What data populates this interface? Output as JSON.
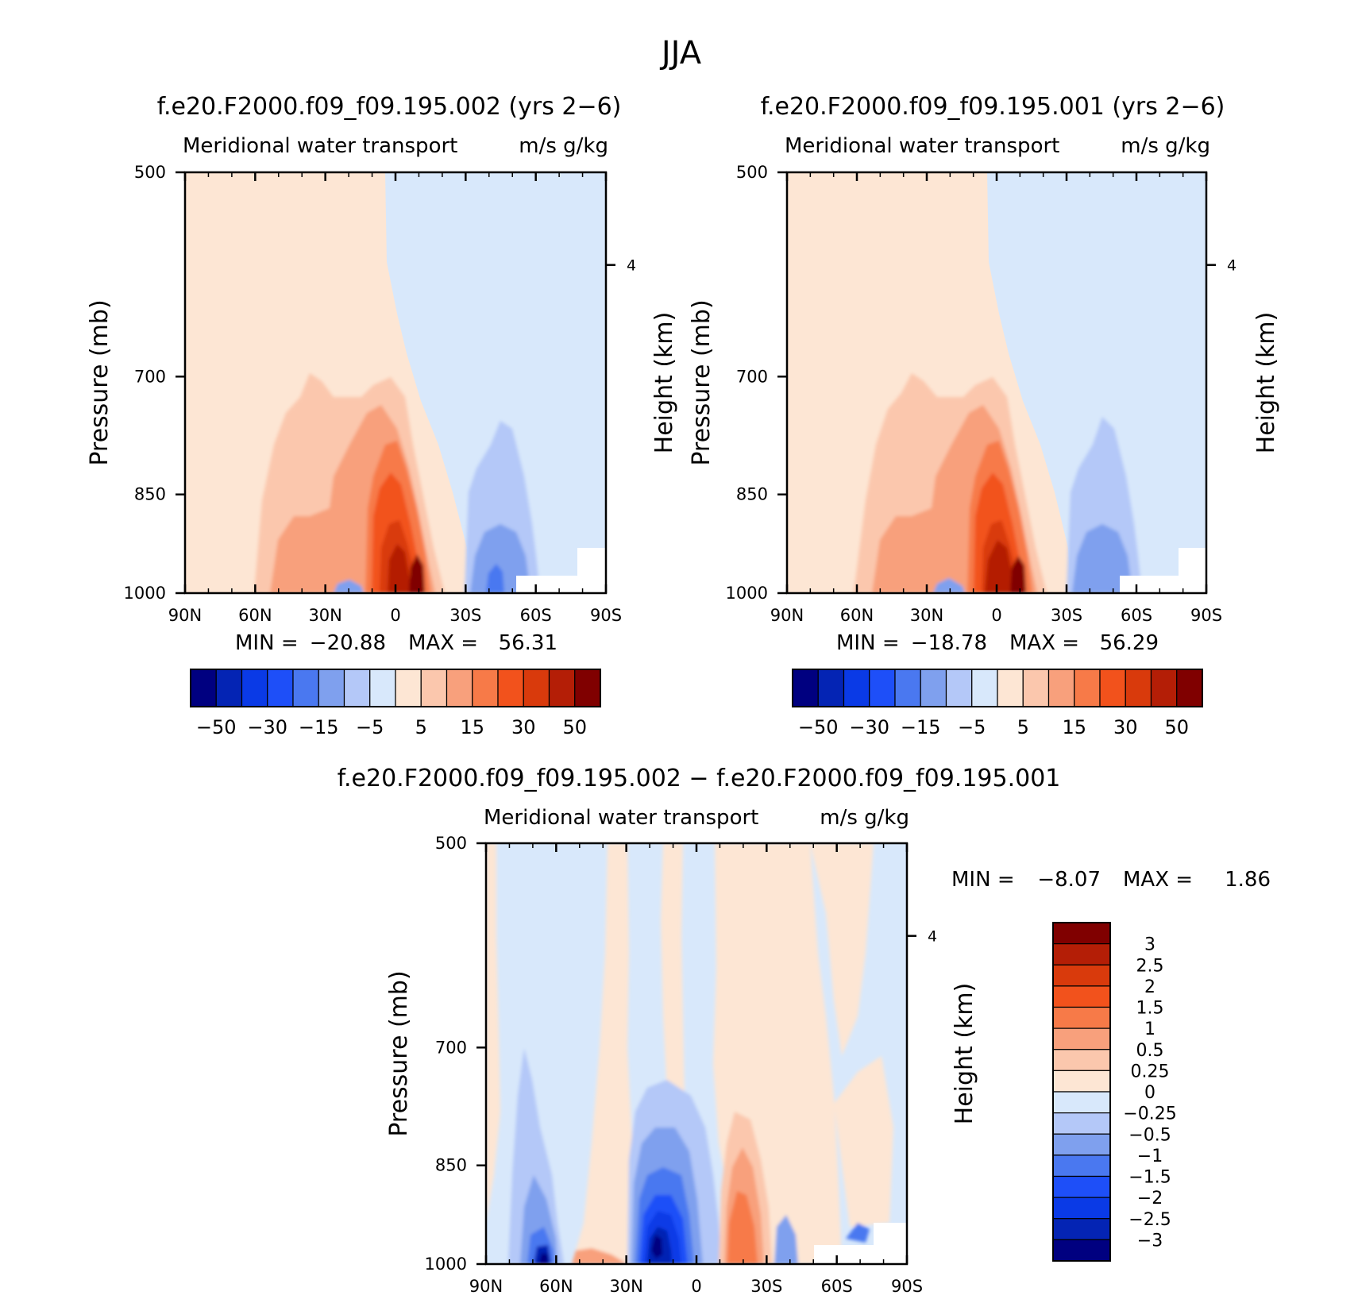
{
  "figure_title": "JJA",
  "chart_data": [
    {
      "type": "heatmap",
      "subtype": "filled-contour latitude-pressure cross-section",
      "title": "f.e20.F2000.f09_f09.195.002 (yrs 2−6)",
      "left_subtitle": "Meridional water transport",
      "right_subtitle": "m/s g/kg",
      "xlabel": "",
      "ylabel": "Pressure (mb)",
      "y2label": "Height (km)",
      "xticks": [
        "90N",
        "60N",
        "30N",
        "0",
        "30S",
        "60S",
        "90S"
      ],
      "xlim": [
        90,
        -90
      ],
      "yticks": [
        "500",
        "700",
        "850",
        "1000"
      ],
      "ylim": [
        1000,
        500
      ],
      "y2ticks": [
        "4"
      ],
      "stats": {
        "min_label": "MIN =",
        "min": "−20.88",
        "max_label": "MAX =",
        "max": "56.31"
      },
      "colorbar": {
        "levels": [
          -60,
          -50,
          -40,
          -30,
          -20,
          -15,
          -10,
          -5,
          0,
          5,
          10,
          15,
          20,
          30,
          40,
          50,
          60
        ],
        "labels": [
          "−50",
          "−30",
          "−15",
          "−5",
          "5",
          "15",
          "30",
          "50"
        ],
        "colors": [
          "#000080",
          "#0424b4",
          "#0a3ae6",
          "#1e4ff8",
          "#4a78f0",
          "#7fa0ee",
          "#b4c8f8",
          "#d8e8fb",
          "#fde6d4",
          "#fbc7ad",
          "#f8a07c",
          "#f77a48",
          "#f2521c",
          "#d93a0c",
          "#b41e06",
          "#800000"
        ]
      },
      "features": [
        {
          "name": "positive core",
          "lat": -8,
          "pressure_top": 730,
          "pressure_bottom": 1000,
          "peak": 56.31
        },
        {
          "name": "negative lobe",
          "lat": -45,
          "pressure_top": 800,
          "pressure_bottom": 1000,
          "peak": -20.88
        }
      ]
    },
    {
      "type": "heatmap",
      "subtype": "filled-contour latitude-pressure cross-section",
      "title": "f.e20.F2000.f09_f09.195.001 (yrs 2−6)",
      "left_subtitle": "Meridional water transport",
      "right_subtitle": "m/s g/kg",
      "xlabel": "",
      "ylabel": "Pressure (mb)",
      "y2label": "Height (km)",
      "xticks": [
        "90N",
        "60N",
        "30N",
        "0",
        "30S",
        "60S",
        "90S"
      ],
      "xlim": [
        90,
        -90
      ],
      "yticks": [
        "500",
        "700",
        "850",
        "1000"
      ],
      "ylim": [
        1000,
        500
      ],
      "y2ticks": [
        "4"
      ],
      "stats": {
        "min_label": "MIN =",
        "min": "−18.78",
        "max_label": "MAX =",
        "max": "56.29"
      },
      "colorbar": {
        "levels": [
          -60,
          -50,
          -40,
          -30,
          -20,
          -15,
          -10,
          -5,
          0,
          5,
          10,
          15,
          20,
          30,
          40,
          50,
          60
        ],
        "labels": [
          "−50",
          "−30",
          "−15",
          "−5",
          "5",
          "15",
          "30",
          "50"
        ],
        "colors": [
          "#000080",
          "#0424b4",
          "#0a3ae6",
          "#1e4ff8",
          "#4a78f0",
          "#7fa0ee",
          "#b4c8f8",
          "#d8e8fb",
          "#fde6d4",
          "#fbc7ad",
          "#f8a07c",
          "#f77a48",
          "#f2521c",
          "#d93a0c",
          "#b41e06",
          "#800000"
        ]
      },
      "features": [
        {
          "name": "positive core",
          "lat": -8,
          "pressure_top": 730,
          "pressure_bottom": 1000,
          "peak": 56.29
        },
        {
          "name": "negative lobe",
          "lat": -45,
          "pressure_top": 800,
          "pressure_bottom": 1000,
          "peak": -18.78
        }
      ]
    },
    {
      "type": "heatmap",
      "subtype": "filled-contour latitude-pressure cross-section (difference)",
      "title": "f.e20.F2000.f09_f09.195.002 − f.e20.F2000.f09_f09.195.001",
      "left_subtitle": "Meridional water transport",
      "right_subtitle": "m/s g/kg",
      "xlabel": "",
      "ylabel": "Pressure (mb)",
      "y2label": "Height (km)",
      "xticks": [
        "90N",
        "60N",
        "30N",
        "0",
        "30S",
        "60S",
        "90S"
      ],
      "xlim": [
        90,
        -90
      ],
      "yticks": [
        "500",
        "700",
        "850",
        "1000"
      ],
      "ylim": [
        1000,
        500
      ],
      "y2ticks": [
        "4"
      ],
      "stats": {
        "min_label": "MIN =",
        "min": "−8.07",
        "max_label": "MAX =",
        "max": "1.86"
      },
      "colorbar": {
        "levels": [
          -3.5,
          -3,
          -2.5,
          -2,
          -1.5,
          -1,
          -0.5,
          -0.25,
          0,
          0.25,
          0.5,
          1,
          1.5,
          2,
          2.5,
          3,
          3.5
        ],
        "labels": [
          "3",
          "2.5",
          "2",
          "1.5",
          "1",
          "0.5",
          "0.25",
          "0",
          "−0.25",
          "−0.5",
          "−1",
          "−1.5",
          "−2",
          "−2.5",
          "−3"
        ],
        "colors": [
          "#000080",
          "#0424b4",
          "#0a3ae6",
          "#1e4ff8",
          "#4a78f0",
          "#7fa0ee",
          "#b4c8f8",
          "#d8e8fb",
          "#fde6d4",
          "#fbc7ad",
          "#f8a07c",
          "#f77a48",
          "#f2521c",
          "#d93a0c",
          "#b41e06",
          "#800000"
        ]
      },
      "features": [
        {
          "name": "negative core",
          "lat": 18,
          "pressure_top": 860,
          "pressure_bottom": 1000,
          "peak": -8.07
        },
        {
          "name": "negative core",
          "lat": 65,
          "pressure_top": 950,
          "pressure_bottom": 1000,
          "peak": -6
        },
        {
          "name": "positive band",
          "lat": -15,
          "pressure_top": 850,
          "pressure_bottom": 1000,
          "peak": 1.86
        }
      ]
    }
  ]
}
